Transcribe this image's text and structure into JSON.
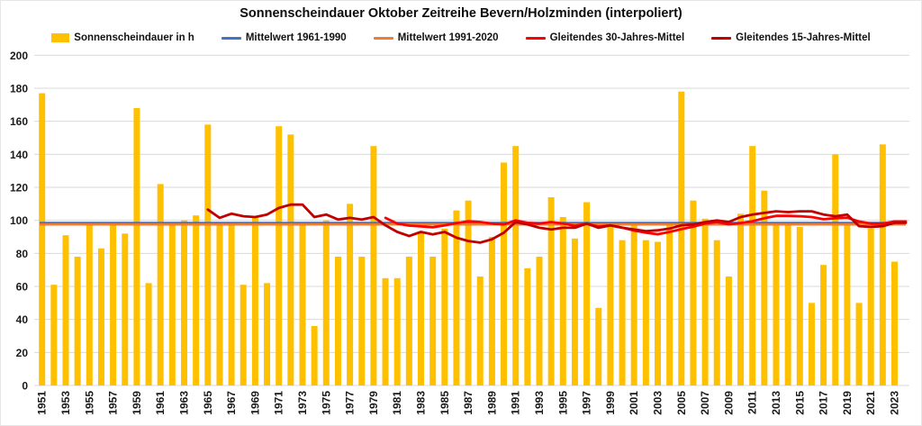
{
  "title": "Sonnenscheindauer Oktober Zeitreihe Bevern/Holzminden (interpoliert)",
  "legend": {
    "items": [
      {
        "label": "Sonnenscheindauer in h",
        "color": "#FFC000",
        "marker": "swatch"
      },
      {
        "label": "Mittelwert 1961-1990",
        "color": "#4472C4",
        "marker": "line"
      },
      {
        "label": "Mittelwert 1991-2020",
        "color": "#ED7D31",
        "marker": "line"
      },
      {
        "label": "Gleitendes 30-Jahres-Mittel",
        "color": "#FF0000",
        "marker": "line"
      },
      {
        "label": "Gleitendes 15-Jahres-Mittel",
        "color": "#C00000",
        "marker": "line"
      }
    ]
  },
  "colors": {
    "bar": "#FFC000",
    "mean_1961_1990": "#4472C4",
    "mean_1991_2020": "#ED7D31",
    "rolling_30": "#FF0000",
    "rolling_15": "#C00000",
    "gridline": "#D9D9D9",
    "axis_text": "#1a1a1a",
    "background": "#FFFFFF"
  },
  "chart_data": {
    "type": "bar",
    "title": "Sonnenscheindauer Oktober Zeitreihe Bevern/Holzminden (interpoliert)",
    "xlabel": "",
    "ylabel": "",
    "start_year": 1951,
    "end_year": 2023,
    "y_axis": {
      "min": 0,
      "max": 200,
      "step": 20
    },
    "grid": true,
    "legend_position": "top",
    "x_tick_labels": [
      "1951",
      "1953",
      "1955",
      "1957",
      "1959",
      "1961",
      "1963",
      "1965",
      "1967",
      "1969",
      "1971",
      "1973",
      "1975",
      "1977",
      "1979",
      "1981",
      "1983",
      "1985",
      "1987",
      "1989",
      "1991",
      "1993",
      "1995",
      "1997",
      "1999",
      "2001",
      "2003",
      "2005",
      "2007",
      "2009",
      "2011",
      "2013",
      "2015",
      "2017",
      "2019",
      "2021",
      "2023"
    ],
    "bar_series": {
      "name": "Sonnenscheindauer in h",
      "unit": "h",
      "color": "#FFC000",
      "values": [
        177,
        61,
        91,
        78,
        98,
        83,
        98,
        92,
        168,
        62,
        122,
        98,
        100,
        103,
        158,
        99,
        98,
        61,
        102,
        62,
        157,
        152,
        99,
        36,
        100,
        78,
        110,
        78,
        145,
        65,
        65,
        78,
        93,
        78,
        95,
        106,
        112,
        66,
        90,
        135,
        145,
        71,
        78,
        114,
        102,
        89,
        111,
        47,
        97,
        88,
        98,
        88,
        87,
        97,
        178,
        112,
        101,
        88,
        66,
        104,
        145,
        118,
        98,
        98,
        96,
        50,
        73,
        140,
        98,
        50,
        95,
        146,
        75
      ]
    },
    "ref_lines": [
      {
        "name": "Mittelwert 1961-1990",
        "color": "#4472C4",
        "value": 98.6
      },
      {
        "name": "Mittelwert 1991-2020",
        "color": "#ED7D31",
        "value": 97.5
      }
    ],
    "line_series": [
      {
        "name": "Gleitendes 30-Jahres-Mittel",
        "color": "#FF0000",
        "start_year": 1980,
        "values": [
          101.5,
          98,
          96.8,
          96.3,
          95.8,
          97,
          98.3,
          99.5,
          99,
          98,
          97.5,
          100,
          98.5,
          98,
          99,
          98,
          96.7,
          98,
          96.2,
          97,
          95.6,
          93.8,
          92.5,
          91.6,
          93,
          94.7,
          96.2,
          98,
          99,
          97.6,
          98.4,
          99.5,
          101.3,
          102.7,
          102.7,
          102.5,
          102,
          100.7,
          101.3,
          101.6,
          99.3,
          98,
          98,
          99.3
        ]
      },
      {
        "name": "Gleitendes 15-Jahres-Mittel",
        "color": "#C00000",
        "start_year": 1965,
        "values": [
          106.5,
          101.5,
          104,
          102.5,
          102,
          103.5,
          107.5,
          109.5,
          109.5,
          102,
          103.5,
          100.5,
          101.5,
          100.5,
          102,
          97,
          93,
          90.5,
          93,
          91.5,
          93,
          89.5,
          87.5,
          86.5,
          88.5,
          92.5,
          99,
          97.5,
          95.5,
          94.5,
          95.5,
          95.5,
          98,
          95.5,
          97,
          95.5,
          94.5,
          93.5,
          94,
          95,
          97,
          97.5,
          99,
          100,
          99,
          102,
          103.5,
          104.5,
          105.5,
          105,
          105.5,
          105.5,
          103.5,
          102.5,
          103.5,
          96.5,
          96,
          96.5,
          98.5
        ]
      }
    ]
  }
}
